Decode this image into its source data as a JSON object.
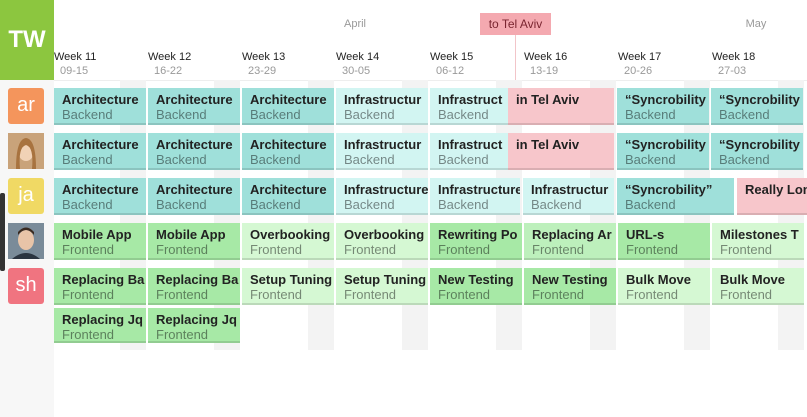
{
  "logo": "TW",
  "months": [
    "April",
    "May"
  ],
  "event_tag": "to Tel Aviv",
  "weeks": [
    {
      "week": "Week 11",
      "dates": "09-15"
    },
    {
      "week": "Week 12",
      "dates": "16-22"
    },
    {
      "week": "Week 13",
      "dates": "23-29"
    },
    {
      "week": "Week 14",
      "dates": "30-05"
    },
    {
      "week": "Week 15",
      "dates": "06-12"
    },
    {
      "week": "Week 16",
      "dates": "13-19"
    },
    {
      "week": "Week 17",
      "dates": "20-26"
    },
    {
      "week": "Week 18",
      "dates": "27-03"
    }
  ],
  "people": [
    {
      "initials": "ar",
      "color": "#f4955c"
    },
    {
      "initials": null,
      "color": "#c9a37a"
    },
    {
      "initials": "ja",
      "color": "#f0d964"
    },
    {
      "initials": null,
      "color": "#6b7c8c"
    },
    {
      "initials": "sh",
      "color": "#f07480"
    }
  ],
  "rows": [
    [
      {
        "title": "Architecture",
        "subtitle": "Backend",
        "color": "#9fe0da"
      },
      {
        "title": "Architecture",
        "subtitle": "Backend",
        "color": "#9fe0da"
      },
      {
        "title": "Architecture",
        "subtitle": "Backend",
        "color": "#9fe0da"
      },
      {
        "title": "Infrastructur",
        "subtitle": "Backend",
        "color": "#d2f5f2"
      },
      {
        "title": "Infrastruct",
        "subtitle": "Backend",
        "color": "#d2f5f2"
      },
      {
        "title": "in Tel Aviv",
        "subtitle": null,
        "color": "#f7c6cb"
      },
      {
        "title": "“Syncrobility",
        "subtitle": "Backend",
        "color": "#9fe0da"
      },
      {
        "title": "“Syncrobility",
        "subtitle": "Backend",
        "color": "#9fe0da"
      }
    ],
    [
      {
        "title": "Architecture",
        "subtitle": "Backend",
        "color": "#9fe0da"
      },
      {
        "title": "Architecture",
        "subtitle": "Backend",
        "color": "#9fe0da"
      },
      {
        "title": "Architecture",
        "subtitle": "Backend",
        "color": "#9fe0da"
      },
      {
        "title": "Infrastructur",
        "subtitle": "Backend",
        "color": "#d2f5f2"
      },
      {
        "title": "Infrastruct",
        "subtitle": "Backend",
        "color": "#d2f5f2"
      },
      {
        "title": "in Tel Aviv",
        "subtitle": null,
        "color": "#f7c6cb"
      },
      {
        "title": "“Syncrobility",
        "subtitle": "Backend",
        "color": "#9fe0da"
      },
      {
        "title": "“Syncrobility",
        "subtitle": "Backend",
        "color": "#9fe0da"
      }
    ],
    [
      {
        "title": "Architecture",
        "subtitle": "Backend",
        "color": "#9fe0da"
      },
      {
        "title": "Architecture",
        "subtitle": "Backend",
        "color": "#9fe0da"
      },
      {
        "title": "Architecture",
        "subtitle": "Backend",
        "color": "#9fe0da"
      },
      {
        "title": "Infrastructure",
        "subtitle": "Backend",
        "color": "#d2f5f2"
      },
      {
        "title": "Infrastructure",
        "subtitle": "Backend",
        "color": "#d2f5f2"
      },
      {
        "title": "Infrastructur",
        "subtitle": "Backend",
        "color": "#d2f5f2"
      },
      {
        "title": "“Syncrobility”",
        "subtitle": "Backend",
        "color": "#9fe0da"
      },
      {
        "title": "Really Lon",
        "subtitle": null,
        "color": "#f7c6cb"
      }
    ],
    [
      {
        "title": "Mobile App",
        "subtitle": "Frontend",
        "color": "#a7e9a6"
      },
      {
        "title": "Mobile App",
        "subtitle": "Frontend",
        "color": "#a7e9a6"
      },
      {
        "title": "Overbooking",
        "subtitle": "Frontend",
        "color": "#d5f8d3"
      },
      {
        "title": "Overbooking",
        "subtitle": "Frontend",
        "color": "#d5f8d3"
      },
      {
        "title": "Rewriting Po",
        "subtitle": "Frontend",
        "color": "#a7e9a6"
      },
      {
        "title": "Replacing Ar",
        "subtitle": "Frontend",
        "color": "#bdf0bc"
      },
      {
        "title": "URL-s",
        "subtitle": "Frontend",
        "color": "#a7e9a6"
      },
      {
        "title": "Milestones T",
        "subtitle": "Frontend",
        "color": "#d5f8d3"
      }
    ],
    [
      {
        "title": "Replacing Ba",
        "subtitle": "Frontend",
        "color": "#a7e9a6"
      },
      {
        "title": "Replacing Ba",
        "subtitle": "Frontend",
        "color": "#a7e9a6"
      },
      {
        "title": "Setup Tuning",
        "subtitle": "Frontend",
        "color": "#d5f8d3"
      },
      {
        "title": "Setup Tuning",
        "subtitle": "Frontend",
        "color": "#d5f8d3"
      },
      {
        "title": "New Testing",
        "subtitle": "Frontend",
        "color": "#a7e9a6"
      },
      {
        "title": "New Testing",
        "subtitle": "Frontend",
        "color": "#a7e9a6"
      },
      {
        "title": "Bulk Move",
        "subtitle": "Frontend",
        "color": "#d5f8d3"
      },
      {
        "title": "Bulk Move",
        "subtitle": "Frontend",
        "color": "#d5f8d3"
      }
    ],
    [
      {
        "title": "Replacing Jq",
        "subtitle": "Frontend",
        "color": "#a7e9a6"
      },
      {
        "title": "Replacing Jq",
        "subtitle": "Frontend",
        "color": "#a7e9a6"
      }
    ]
  ]
}
